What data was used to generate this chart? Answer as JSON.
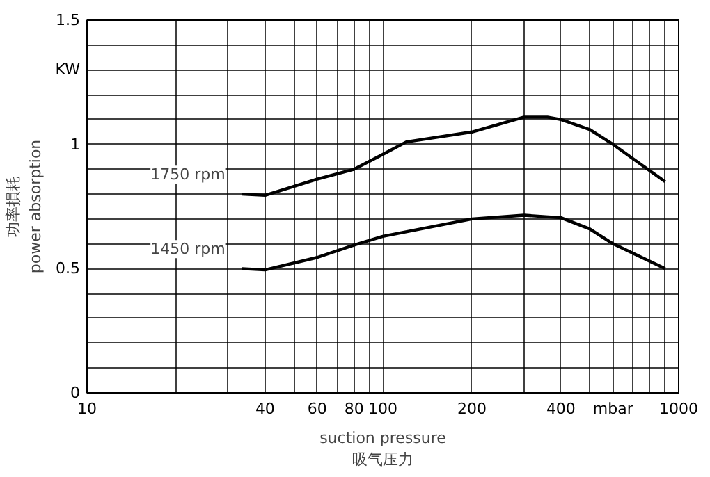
{
  "chart_data": {
    "type": "line",
    "xlabel": "suction pressure\n吸气压力",
    "ylabel": "功率損耗\npower absorption",
    "log": "x",
    "xlim": [
      10,
      1000
    ],
    "xticks": [
      10,
      {
        "value": 20,
        "label": null
      },
      {
        "value": 30,
        "label": null
      },
      40,
      {
        "value": 50,
        "label": null
      },
      60,
      {
        "value": 70,
        "label": null
      },
      80,
      {
        "value": 90,
        "label": null
      },
      100,
      200,
      {
        "value": 300,
        "label": null
      },
      400,
      {
        "value": 500,
        "label": null
      },
      {
        "value": 600,
        "label": "mbar"
      },
      {
        "value": 700,
        "label": null
      },
      {
        "value": 800,
        "label": null
      },
      {
        "value": 900,
        "label": null
      },
      1000
    ],
    "ylim": [
      0,
      1.5
    ],
    "yticks": [
      0,
      {
        "value": 0.1,
        "label": null
      },
      {
        "value": 0.2,
        "label": null
      },
      {
        "value": 0.3,
        "label": null
      },
      {
        "value": 0.4,
        "label": null
      },
      0.5,
      {
        "value": 0.6,
        "label": null
      },
      {
        "value": 0.7,
        "label": null
      },
      {
        "value": 0.8,
        "label": null
      },
      {
        "value": 0.9,
        "label": null
      },
      1,
      {
        "value": 1.1,
        "label": null
      },
      {
        "value": 1.2,
        "label": null
      },
      {
        "value": 1.3,
        "label": "KW"
      },
      {
        "value": 1.4,
        "label": null
      },
      1.5
    ],
    "grid": true,
    "legend": false,
    "marker": "none",
    "line_style": "solid",
    "series": [
      {
        "name": "1750 rpm",
        "color": "#000000",
        "x": [
          33.4,
          40,
          60,
          80,
          100,
          120,
          200,
          300,
          360,
          400,
          500,
          600,
          900
        ],
        "values": [
          0.8,
          0.795,
          0.86,
          0.9,
          0.96,
          1.01,
          1.05,
          1.11,
          1.11,
          1.1,
          1.06,
          1.0,
          0.85
        ]
      },
      {
        "name": "1450 rpm",
        "color": "#000000",
        "x": [
          33.4,
          40,
          60,
          80,
          100,
          200,
          300,
          400,
          500,
          600,
          900
        ],
        "values": [
          0.5,
          0.495,
          0.545,
          0.595,
          0.63,
          0.7,
          0.715,
          0.705,
          0.66,
          0.6,
          0.5
        ]
      }
    ]
  }
}
